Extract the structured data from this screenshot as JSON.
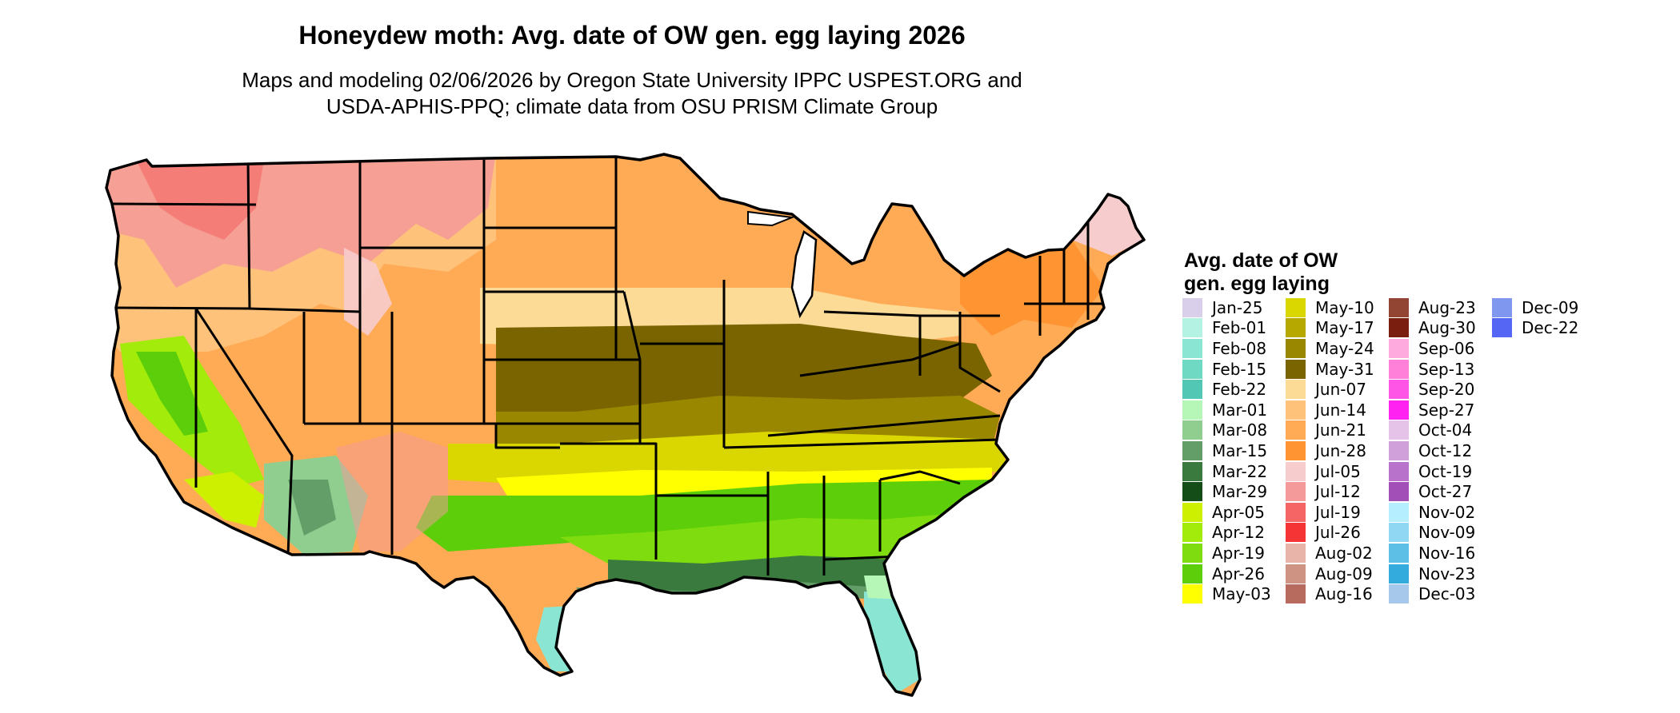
{
  "title": "Honeydew moth: Avg. date of OW gen. egg laying 2026",
  "subtitle": [
    "Maps and modeling 02/06/2026 by Oregon State University IPPC USPEST.ORG and",
    "USDA-APHIS-PPQ; climate data from OSU PRISM Climate Group"
  ],
  "legend": {
    "title": [
      "Avg. date of OW",
      "gen. egg laying"
    ],
    "items": [
      {
        "label": "Jan-25",
        "color": "#d9cfea"
      },
      {
        "label": "Feb-01",
        "color": "#b4f3e3"
      },
      {
        "label": "Feb-08",
        "color": "#8ae6d2"
      },
      {
        "label": "Feb-15",
        "color": "#6fd9c3"
      },
      {
        "label": "Feb-22",
        "color": "#52c7b4"
      },
      {
        "label": "Mar-01",
        "color": "#b6f7b8"
      },
      {
        "label": "Mar-08",
        "color": "#8fce8f"
      },
      {
        "label": "Mar-15",
        "color": "#639e68"
      },
      {
        "label": "Mar-22",
        "color": "#3b7a3f"
      },
      {
        "label": "Mar-29",
        "color": "#144d17"
      },
      {
        "label": "Apr-05",
        "color": "#ccf000"
      },
      {
        "label": "Apr-12",
        "color": "#a3eb0a"
      },
      {
        "label": "Apr-19",
        "color": "#7fdc0e"
      },
      {
        "label": "Apr-26",
        "color": "#5ccf0a"
      },
      {
        "label": "May-03",
        "color": "#ffff00"
      },
      {
        "label": "May-10",
        "color": "#dad600"
      },
      {
        "label": "May-17",
        "color": "#b7a800"
      },
      {
        "label": "May-24",
        "color": "#998700"
      },
      {
        "label": "May-31",
        "color": "#7a6400"
      },
      {
        "label": "Jun-07",
        "color": "#fcdb97"
      },
      {
        "label": "Jun-14",
        "color": "#ffc27a"
      },
      {
        "label": "Jun-21",
        "color": "#ffaa55"
      },
      {
        "label": "Jun-28",
        "color": "#ff9433"
      },
      {
        "label": "Jul-05",
        "color": "#f7cccc"
      },
      {
        "label": "Jul-12",
        "color": "#f59a9a"
      },
      {
        "label": "Jul-19",
        "color": "#f56565"
      },
      {
        "label": "Jul-26",
        "color": "#f53535"
      },
      {
        "label": "Aug-02",
        "color": "#e8b4aa"
      },
      {
        "label": "Aug-09",
        "color": "#cf9384"
      },
      {
        "label": "Aug-16",
        "color": "#b76b5e"
      },
      {
        "label": "Aug-23",
        "color": "#934534"
      },
      {
        "label": "Aug-30",
        "color": "#7a1e10"
      },
      {
        "label": "Sep-06",
        "color": "#ffaade"
      },
      {
        "label": "Sep-13",
        "color": "#ff80d9"
      },
      {
        "label": "Sep-20",
        "color": "#ff55e6"
      },
      {
        "label": "Sep-27",
        "color": "#ff22f0"
      },
      {
        "label": "Oct-04",
        "color": "#e5c2e8"
      },
      {
        "label": "Oct-12",
        "color": "#cfa0da"
      },
      {
        "label": "Oct-19",
        "color": "#b872cc"
      },
      {
        "label": "Oct-27",
        "color": "#a250b8"
      },
      {
        "label": "Nov-02",
        "color": "#b5efff"
      },
      {
        "label": "Nov-09",
        "color": "#8fd7f2"
      },
      {
        "label": "Nov-16",
        "color": "#5ebfe6"
      },
      {
        "label": "Nov-23",
        "color": "#34abdd"
      },
      {
        "label": "Dec-03",
        "color": "#a6c8ea"
      },
      {
        "label": "Dec-09",
        "color": "#7f97ef"
      },
      {
        "label": "Dec-22",
        "color": "#5566f5"
      }
    ]
  },
  "map": {
    "region": "Contiguous United States",
    "zone_colors": {
      "north_mountain": "#f59a9a",
      "north_plains": "#ffaa55",
      "mid_plains": "#ffc27a",
      "corn_belt": "#fcdb97",
      "central_band": "#7a6400",
      "mid_south": "#998700",
      "tennessee_band": "#dad600",
      "oklahoma_band": "#ffff00",
      "gulf_inland": "#5ccf0a",
      "gulf_coast": "#3b7a3f",
      "gulf_shore": "#639e68",
      "texas_south": "#8ae6d2",
      "florida": "#8ae6d2",
      "california_valley": "#a3eb0a",
      "arizona_desert": "#8fce8f",
      "northeast": "#ff9433",
      "maine_north": "#f7cccc",
      "outline": "#000000"
    }
  }
}
